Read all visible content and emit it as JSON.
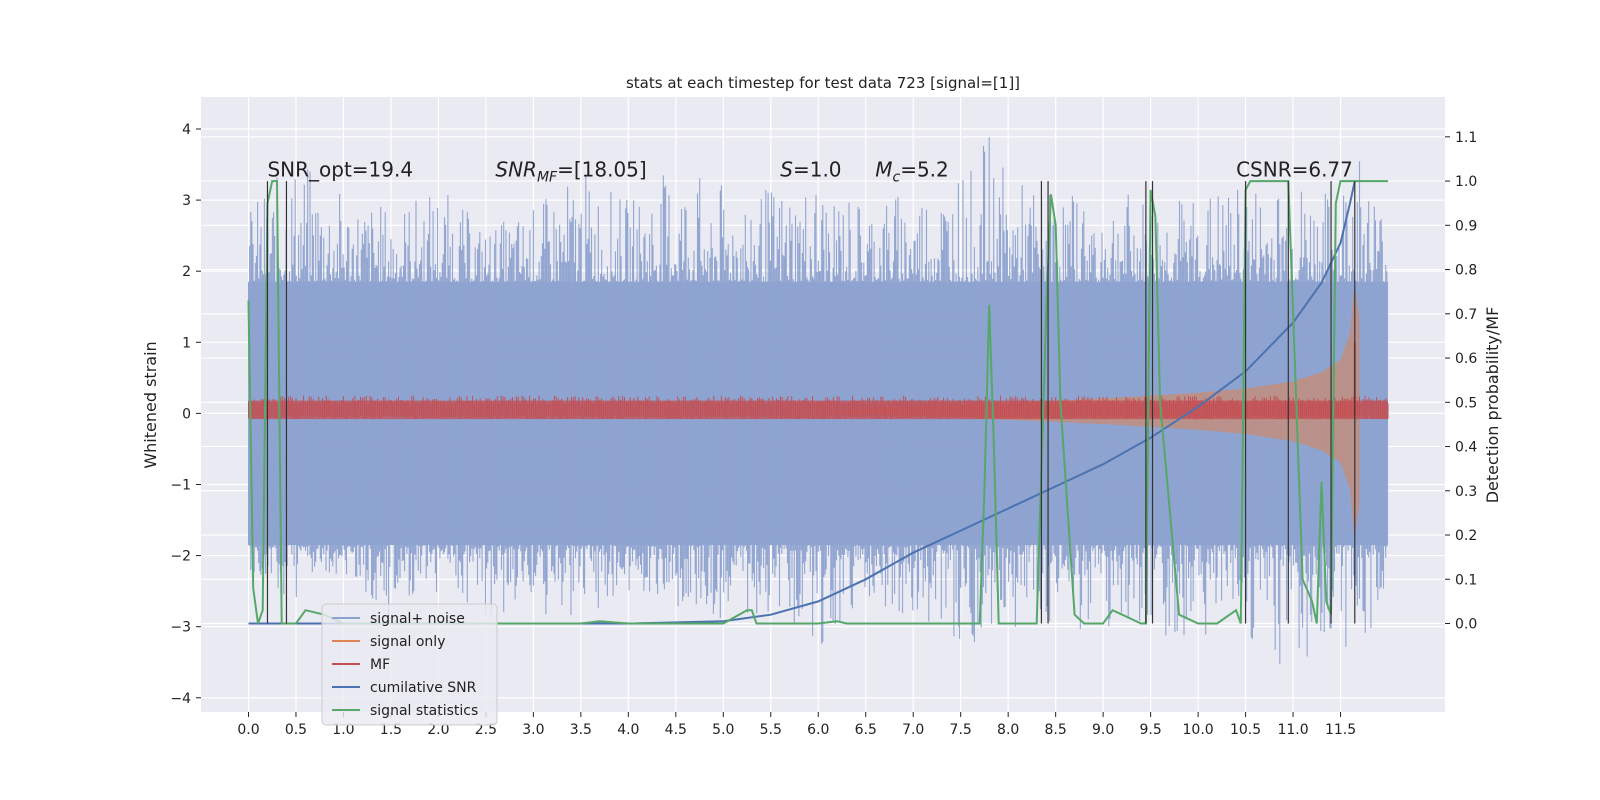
{
  "chart_data": {
    "type": "line",
    "title": "stats at each timestep for test data 723 [signal=[1]]",
    "ylabel_left": "Whitened strain",
    "ylabel_right": "Detection probability/MF",
    "xlim": [
      -0.5,
      12.6
    ],
    "ylim_left": [
      -4.2,
      4.45
    ],
    "ylim_right": [
      -0.2,
      1.19
    ],
    "x_ticks": [
      0.0,
      0.5,
      1.0,
      1.5,
      2.0,
      2.5,
      3.0,
      3.5,
      4.0,
      4.5,
      5.0,
      5.5,
      6.0,
      6.5,
      7.0,
      7.5,
      8.0,
      8.5,
      9.0,
      9.5,
      10.0,
      10.5,
      11.0,
      11.5
    ],
    "x_tick_labels": [
      "0.0",
      "0.5",
      "1.0",
      "1.5",
      "2.0",
      "2.5",
      "3.0",
      "3.5",
      "4.0",
      "4.5",
      "5.0",
      "5.5",
      "6.0",
      "6.5",
      "7.0",
      "7.5",
      "8.0",
      "8.5",
      "9.0",
      "9.5",
      "10.0",
      "10.5",
      "11.0",
      "11.5"
    ],
    "y_left_ticks": [
      -4,
      -3,
      -2,
      -1,
      0,
      1,
      2,
      3,
      4
    ],
    "y_left_tick_labels": [
      "−4",
      "−3",
      "−2",
      "−1",
      "0",
      "1",
      "2",
      "3",
      "4"
    ],
    "y_right_ticks": [
      0.0,
      0.1,
      0.2,
      0.3,
      0.4,
      0.5,
      0.6,
      0.7,
      0.8,
      0.9,
      1.0,
      1.1
    ],
    "y_right_tick_labels": [
      "0.0",
      "0.1",
      "0.2",
      "0.3",
      "0.4",
      "0.5",
      "0.6",
      "0.7",
      "0.8",
      "0.9",
      "1.0",
      "1.1"
    ],
    "grid": true,
    "legend_position": "lower-left",
    "annotations": [
      {
        "text": "SNR_opt=19.4",
        "x": 0.2,
        "y_right": 1.01
      },
      {
        "text_main": "SNR",
        "text_sub": "MF",
        "text_rest": "=[18.05]",
        "x": 2.6,
        "y_right": 1.01
      },
      {
        "text_main": "S",
        "text_rest": "=1.0",
        "x": 5.6,
        "y_right": 1.01
      },
      {
        "text_main": "M",
        "text_sub": "c",
        "text_rest": "=5.2",
        "x": 6.6,
        "y_right": 1.01
      },
      {
        "text": "CSNR=6.77",
        "x": 10.4,
        "y_right": 1.01
      }
    ],
    "series": [
      {
        "name": "signal+ noise",
        "axis": "left",
        "color": "#8da2cf",
        "style": "noise band",
        "x_range": [
          0.0,
          12.0
        ],
        "core_range": [
          -1.85,
          1.85
        ],
        "x": [
          0.0,
          0.5,
          1.0,
          1.5,
          2.0,
          2.5,
          3.0,
          3.5,
          4.0,
          4.5,
          5.0,
          5.5,
          6.0,
          6.5,
          7.0,
          7.5,
          7.8,
          8.0,
          8.5,
          9.0,
          9.5,
          10.0,
          10.5,
          11.0,
          11.5,
          11.6,
          12.0
        ],
        "upper_peak": [
          2.9,
          3.6,
          3.1,
          2.9,
          3.2,
          2.6,
          2.9,
          3.4,
          3.0,
          3.5,
          3.2,
          3.2,
          3.3,
          3.0,
          3.2,
          3.4,
          3.9,
          3.3,
          3.1,
          3.2,
          3.0,
          3.1,
          3.2,
          3.3,
          3.0,
          4.1,
          2.7
        ],
        "lower_peak": [
          -2.4,
          -2.6,
          -2.3,
          -3.0,
          -2.6,
          -2.9,
          -2.8,
          -3.1,
          -2.5,
          -2.7,
          -3.0,
          -2.8,
          -3.3,
          -2.7,
          -2.9,
          -3.3,
          -3.3,
          -3.0,
          -3.1,
          -3.0,
          -3.1,
          -3.2,
          -3.1,
          -3.8,
          -3.4,
          -3.6,
          -2.6
        ]
      },
      {
        "name": "signal only",
        "axis": "left",
        "color": "#dd8452",
        "style": "chirp envelope",
        "x": [
          0.0,
          6.0,
          7.0,
          8.0,
          9.0,
          10.0,
          10.5,
          11.0,
          11.3,
          11.5,
          11.6,
          11.65,
          11.7
        ],
        "amplitude": [
          0.0,
          0.0,
          0.06,
          0.12,
          0.18,
          0.26,
          0.32,
          0.42,
          0.55,
          0.72,
          1.1,
          1.8,
          1.3
        ]
      },
      {
        "name": "MF",
        "axis": "left",
        "color": "#c44e52",
        "style": "thin band",
        "x_range": [
          0.0,
          12.0
        ],
        "upper": 0.18,
        "lower": -0.08,
        "spike_x": 11.65,
        "spike_y": 1.0
      },
      {
        "name": "cumilative SNR",
        "axis": "right",
        "color": "#4c72b0",
        "x": [
          0.0,
          4.0,
          5.0,
          5.5,
          6.0,
          6.5,
          7.0,
          7.5,
          8.0,
          8.5,
          9.0,
          9.5,
          10.0,
          10.5,
          11.0,
          11.3,
          11.5,
          11.6,
          11.65
        ],
        "y": [
          0.0,
          0.0,
          0.005,
          0.02,
          0.05,
          0.1,
          0.16,
          0.21,
          0.26,
          0.31,
          0.36,
          0.42,
          0.49,
          0.57,
          0.68,
          0.77,
          0.86,
          0.95,
          1.0
        ]
      },
      {
        "name": "signal statistics",
        "axis": "right",
        "color": "#55a868",
        "x": [
          0.0,
          0.05,
          0.1,
          0.15,
          0.2,
          0.25,
          0.3,
          0.35,
          0.4,
          0.45,
          0.5,
          0.6,
          0.8,
          1.0,
          1.2,
          1.5,
          2.0,
          2.5,
          3.0,
          3.5,
          3.7,
          4.0,
          4.5,
          5.0,
          5.25,
          5.3,
          5.35,
          5.5,
          6.0,
          6.2,
          6.3,
          7.0,
          7.7,
          7.75,
          7.8,
          7.85,
          7.9,
          8.2,
          8.3,
          8.4,
          8.45,
          8.5,
          8.55,
          8.7,
          8.8,
          9.0,
          9.1,
          9.4,
          9.45,
          9.5,
          9.55,
          9.6,
          9.8,
          10.0,
          10.2,
          10.4,
          10.45,
          10.5,
          10.55,
          10.6,
          10.7,
          10.85,
          10.9,
          10.95,
          11.0,
          11.1,
          11.2,
          11.25,
          11.3,
          11.35,
          11.4,
          11.45,
          11.5,
          11.6,
          12.0
        ],
        "y": [
          0.73,
          0.08,
          0.0,
          0.03,
          0.95,
          1.0,
          1.0,
          0.0,
          0.0,
          0.0,
          0.0,
          0.03,
          0.02,
          0.0,
          0.0,
          0.0,
          0.0,
          0.0,
          0.0,
          0.0,
          0.005,
          0.0,
          0.0,
          0.0,
          0.03,
          0.03,
          0.0,
          0.0,
          0.0,
          0.005,
          0.0,
          0.0,
          0.0,
          0.3,
          0.72,
          0.4,
          0.0,
          0.0,
          0.0,
          0.7,
          0.97,
          0.9,
          0.5,
          0.02,
          0.0,
          0.0,
          0.03,
          0.0,
          0.0,
          0.98,
          0.92,
          0.5,
          0.02,
          0.0,
          0.0,
          0.03,
          0.0,
          0.98,
          1.0,
          1.0,
          1.0,
          1.0,
          1.0,
          1.0,
          0.7,
          0.1,
          0.05,
          0.0,
          0.32,
          0.05,
          0.02,
          0.95,
          1.0,
          1.0,
          1.0
        ]
      }
    ],
    "vertical_markers": [
      0.2,
      0.4,
      8.35,
      8.42,
      9.45,
      9.52,
      10.5,
      10.95,
      11.4,
      11.65
    ]
  }
}
